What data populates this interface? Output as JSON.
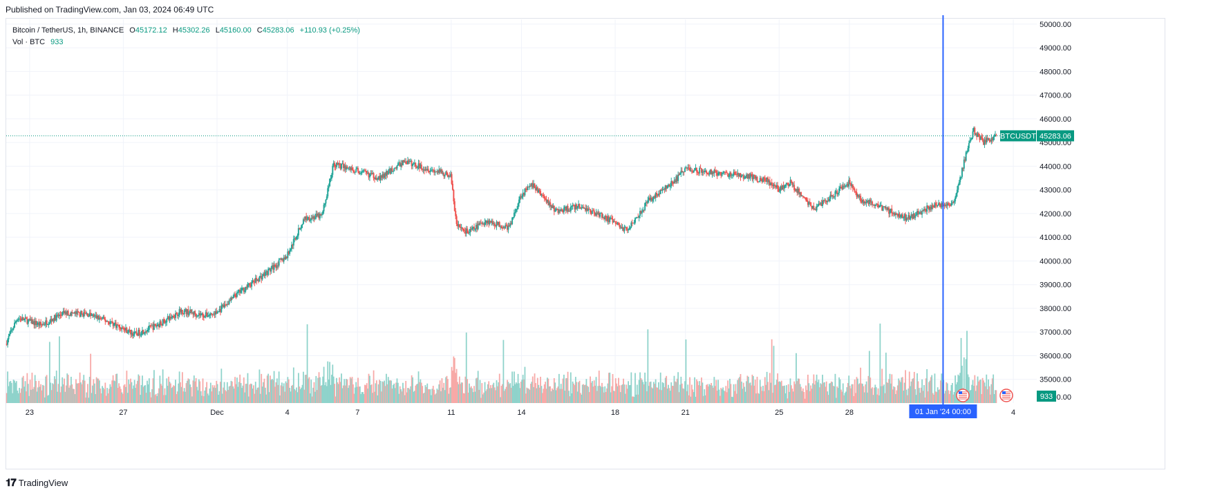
{
  "published": "Published on TradingView.com, Jan 03, 2024 06:49 UTC",
  "legend": {
    "symbol": "Bitcoin / TetherUS, 1h, BINANCE",
    "open_label": "O",
    "open": "45172.12",
    "high_label": "H",
    "high": "45302.26",
    "low_label": "L",
    "low": "45160.00",
    "close_label": "C",
    "close": "45283.06",
    "change": "+110.93 (+0.25%)",
    "vol_label": "Vol · BTC",
    "vol_value": "933"
  },
  "footer": {
    "logo": "TradingView"
  },
  "colors": {
    "up": "#26a69a",
    "down": "#ef5350",
    "up_vol": "#8fd3cb",
    "down_vol": "#f7a9a7",
    "crosshair": "#2962ff",
    "price_line": "#089981",
    "grid": "#f0f3fa"
  },
  "chart_data": {
    "type": "candlestick",
    "symbol": "BTCUSDT",
    "interval": "1h",
    "last_price": 45283.06,
    "last_price_label": "45283.06",
    "volume_last_label": "933",
    "crosshair_label": "01 Jan '24   00:00",
    "y_ticks": [
      "50000.00",
      "49000.00",
      "48000.00",
      "47000.00",
      "46000.00",
      "45000.00",
      "44000.00",
      "43000.00",
      "42000.00",
      "41000.00",
      "40000.00",
      "39000.00",
      "38000.00",
      "37000.00",
      "36000.00",
      "35000.00"
    ],
    "y_bottom_label": "00.00",
    "ylim": [
      34000,
      50200
    ],
    "x_ticks": [
      "23",
      "27",
      "Dec",
      "4",
      "7",
      "11",
      "14",
      "18",
      "21",
      "25",
      "28",
      "4"
    ],
    "x_tick_dates": [
      "2023-11-23",
      "2023-11-27",
      "2023-12-01",
      "2023-12-04",
      "2023-12-07",
      "2023-12-11",
      "2023-12-14",
      "2023-12-18",
      "2023-12-21",
      "2023-12-25",
      "2023-12-28",
      "2024-01-04"
    ],
    "x_range": [
      "2023-11-22T00:00",
      "2024-01-05T00:00"
    ],
    "crosshair_time": "2024-01-01T00:00",
    "price_path": [
      {
        "t": "2023-11-22T00:00",
        "p": 36500
      },
      {
        "t": "2023-11-22T12:00",
        "p": 37600
      },
      {
        "t": "2023-11-23T12:00",
        "p": 37300
      },
      {
        "t": "2023-11-24T12:00",
        "p": 37800
      },
      {
        "t": "2023-11-25T12:00",
        "p": 37750
      },
      {
        "t": "2023-11-26T12:00",
        "p": 37400
      },
      {
        "t": "2023-11-27T12:00",
        "p": 36900
      },
      {
        "t": "2023-11-28T12:00",
        "p": 37300
      },
      {
        "t": "2023-11-29T12:00",
        "p": 37900
      },
      {
        "t": "2023-11-30T12:00",
        "p": 37700
      },
      {
        "t": "2023-12-01T00:00",
        "p": 37800
      },
      {
        "t": "2023-12-02T00:00",
        "p": 38700
      },
      {
        "t": "2023-12-03T00:00",
        "p": 39400
      },
      {
        "t": "2023-12-04T00:00",
        "p": 40200
      },
      {
        "t": "2023-12-04T18:00",
        "p": 41800
      },
      {
        "t": "2023-12-05T12:00",
        "p": 41900
      },
      {
        "t": "2023-12-06T00:00",
        "p": 44100
      },
      {
        "t": "2023-12-07T00:00",
        "p": 43800
      },
      {
        "t": "2023-12-08T00:00",
        "p": 43500
      },
      {
        "t": "2023-12-09T00:00",
        "p": 44200
      },
      {
        "t": "2023-12-10T00:00",
        "p": 43900
      },
      {
        "t": "2023-12-11T00:00",
        "p": 43600
      },
      {
        "t": "2023-12-11T06:00",
        "p": 41500
      },
      {
        "t": "2023-12-11T18:00",
        "p": 41200
      },
      {
        "t": "2023-12-12T12:00",
        "p": 41700
      },
      {
        "t": "2023-12-13T12:00",
        "p": 41400
      },
      {
        "t": "2023-12-14T00:00",
        "p": 42800
      },
      {
        "t": "2023-12-14T12:00",
        "p": 43200
      },
      {
        "t": "2023-12-15T12:00",
        "p": 42100
      },
      {
        "t": "2023-12-16T12:00",
        "p": 42300
      },
      {
        "t": "2023-12-17T12:00",
        "p": 41900
      },
      {
        "t": "2023-12-18T12:00",
        "p": 41300
      },
      {
        "t": "2023-12-19T12:00",
        "p": 42600
      },
      {
        "t": "2023-12-20T12:00",
        "p": 43300
      },
      {
        "t": "2023-12-21T00:00",
        "p": 43900
      },
      {
        "t": "2023-12-22T12:00",
        "p": 43700
      },
      {
        "t": "2023-12-23T12:00",
        "p": 43600
      },
      {
        "t": "2023-12-24T12:00",
        "p": 43400
      },
      {
        "t": "2023-12-25T00:00",
        "p": 43000
      },
      {
        "t": "2023-12-25T12:00",
        "p": 43300
      },
      {
        "t": "2023-12-26T12:00",
        "p": 42200
      },
      {
        "t": "2023-12-27T12:00",
        "p": 42900
      },
      {
        "t": "2023-12-28T00:00",
        "p": 43300
      },
      {
        "t": "2023-12-28T12:00",
        "p": 42600
      },
      {
        "t": "2023-12-29T12:00",
        "p": 42200
      },
      {
        "t": "2023-12-30T12:00",
        "p": 41800
      },
      {
        "t": "2023-12-31T12:00",
        "p": 42300
      },
      {
        "t": "2024-01-01T12:00",
        "p": 42500
      },
      {
        "t": "2024-01-02T00:00",
        "p": 44500
      },
      {
        "t": "2024-01-02T08:00",
        "p": 45500
      },
      {
        "t": "2024-01-02T18:00",
        "p": 45000
      },
      {
        "t": "2024-01-03T06:00",
        "p": 45283
      }
    ]
  }
}
